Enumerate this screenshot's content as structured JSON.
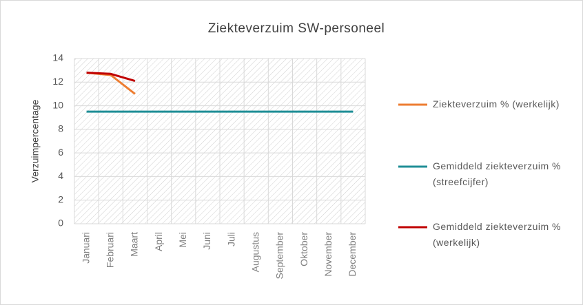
{
  "chart_data": {
    "type": "line",
    "title": "Ziekteverzuim SW-personeel",
    "y_label": "Verzuimpercentage",
    "categories": [
      "Januari",
      "Februari",
      "Maart",
      "April",
      "Mei",
      "Juni",
      "Juli",
      "Augustus",
      "September",
      "Oktober",
      "November",
      "December"
    ],
    "series": [
      {
        "name": "Ziekteverzuim % (werkelijk)",
        "color": "#ed7d31",
        "values": [
          12.8,
          12.6,
          11.0,
          null,
          null,
          null,
          null,
          null,
          null,
          null,
          null,
          null
        ]
      },
      {
        "name": "Gemiddeld ziekteverzuim % (streefcijfer)",
        "color": "#1f8e96",
        "values": [
          9.5,
          9.5,
          9.5,
          9.5,
          9.5,
          9.5,
          9.5,
          9.5,
          9.5,
          9.5,
          9.5,
          9.5
        ]
      },
      {
        "name": "Gemiddeld ziekteverzuim % (werkelijk)",
        "color": "#c00000",
        "values": [
          12.8,
          12.7,
          12.1,
          null,
          null,
          null,
          null,
          null,
          null,
          null,
          null,
          null
        ]
      }
    ],
    "ylim": [
      0,
      14
    ],
    "yticks": [
      0,
      2,
      4,
      6,
      8,
      10,
      12,
      14
    ],
    "grid": true,
    "legend": "right"
  }
}
